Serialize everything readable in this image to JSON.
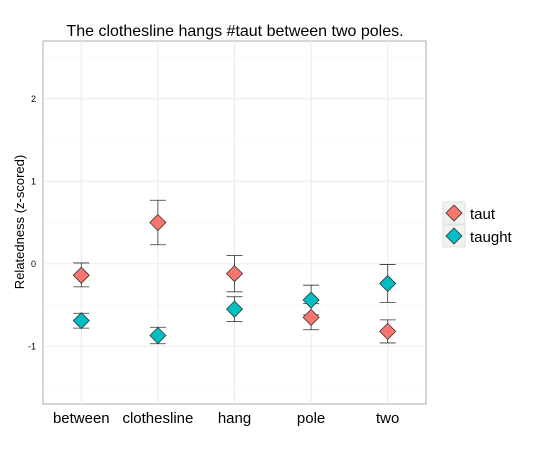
{
  "chart_data": {
    "type": "scatter",
    "title": "The clothesline hangs #taut between two poles.",
    "xlabel": "",
    "ylabel": "Relatedness (z-scored)",
    "categories": [
      "between",
      "clothesline",
      "hang",
      "pole",
      "two"
    ],
    "ylim": [
      -1.7,
      2.7
    ],
    "yticks": [
      -1,
      0,
      1,
      2
    ],
    "grid": true,
    "legend_position": "right",
    "series": [
      {
        "name": "taut",
        "color": "#F8766D",
        "values": [
          -0.14,
          0.5,
          -0.12,
          -0.65,
          -0.82
        ],
        "error_low": [
          -0.28,
          0.23,
          -0.34,
          -0.8,
          -0.96
        ],
        "error_high": [
          0.01,
          0.77,
          0.1,
          -0.48,
          -0.68
        ]
      },
      {
        "name": "taught",
        "color": "#00BFC4",
        "values": [
          -0.69,
          -0.87,
          -0.55,
          -0.44,
          -0.24
        ],
        "error_low": [
          -0.78,
          -0.97,
          -0.7,
          -0.62,
          -0.47
        ],
        "error_high": [
          -0.6,
          -0.77,
          -0.4,
          -0.26,
          -0.01
        ]
      }
    ]
  }
}
